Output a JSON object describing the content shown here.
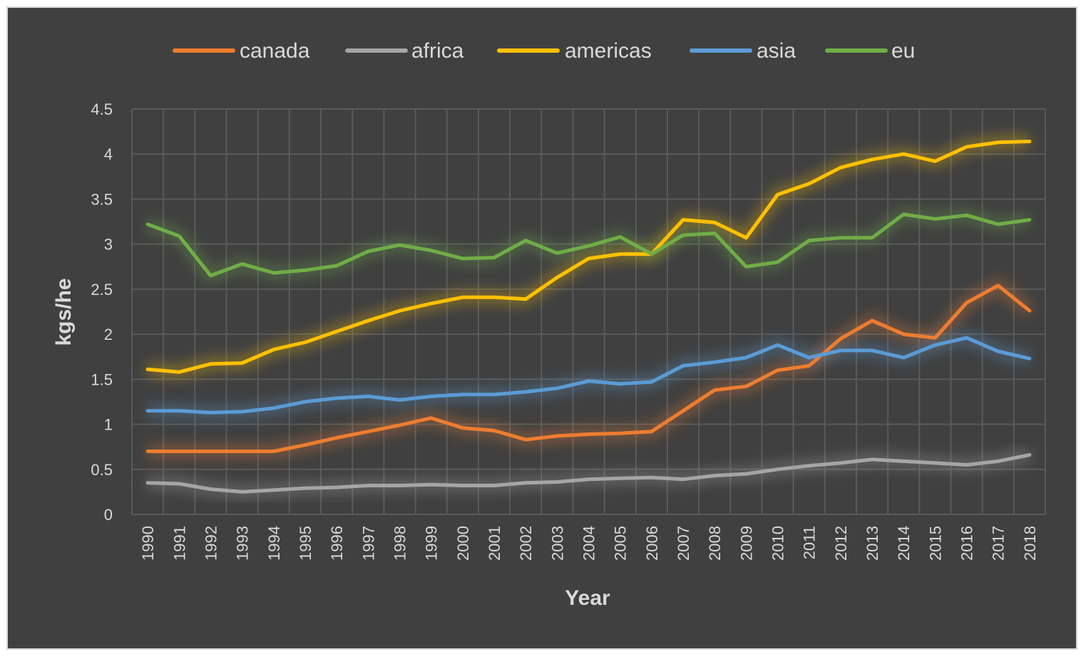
{
  "chart_data": {
    "type": "line",
    "title": "",
    "xlabel": "Year",
    "ylabel": "kgs/he",
    "ylim": [
      0,
      4.5
    ],
    "yticks": [
      "0",
      "0.5",
      "1",
      "1.5",
      "2",
      "2.5",
      "3",
      "3.5",
      "4",
      "4.5"
    ],
    "ytick_values": [
      0,
      0.5,
      1,
      1.5,
      2,
      2.5,
      3,
      3.5,
      4,
      4.5
    ],
    "grid": true,
    "legend_position": "top",
    "categories": [
      "1990",
      "1991",
      "1992",
      "1993",
      "1994",
      "1995",
      "1996",
      "1997",
      "1998",
      "1999",
      "2000",
      "2001",
      "2002",
      "2003",
      "2004",
      "2005",
      "2006",
      "2007",
      "2008",
      "2009",
      "2010",
      "2011",
      "2012",
      "2013",
      "2014",
      "2015",
      "2016",
      "2017",
      "2018"
    ],
    "series": [
      {
        "name": "canada",
        "color": "#ed7d31",
        "values": [
          0.7,
          0.7,
          0.7,
          0.7,
          0.7,
          0.77,
          0.85,
          0.92,
          0.99,
          1.07,
          0.96,
          0.93,
          0.83,
          0.87,
          0.89,
          0.9,
          0.92,
          1.15,
          1.38,
          1.42,
          1.6,
          1.65,
          1.95,
          2.15,
          2.0,
          1.96,
          2.35,
          2.54,
          2.26
        ]
      },
      {
        "name": "africa",
        "color": "#a5a5a5",
        "values": [
          0.35,
          0.34,
          0.28,
          0.25,
          0.27,
          0.29,
          0.3,
          0.32,
          0.32,
          0.33,
          0.32,
          0.32,
          0.35,
          0.36,
          0.39,
          0.4,
          0.41,
          0.39,
          0.43,
          0.45,
          0.5,
          0.54,
          0.57,
          0.61,
          0.59,
          0.57,
          0.55,
          0.59,
          0.66
        ]
      },
      {
        "name": "americas",
        "color": "#ffc000",
        "values": [
          1.61,
          1.58,
          1.67,
          1.68,
          1.83,
          1.91,
          2.03,
          2.15,
          2.26,
          2.34,
          2.41,
          2.41,
          2.39,
          2.63,
          2.84,
          2.89,
          2.89,
          3.27,
          3.24,
          3.07,
          3.55,
          3.67,
          3.85,
          3.94,
          4.0,
          3.92,
          4.08,
          4.13,
          4.14
        ]
      },
      {
        "name": "asia",
        "color": "#5b9bd5",
        "values": [
          1.15,
          1.15,
          1.13,
          1.14,
          1.18,
          1.25,
          1.29,
          1.31,
          1.27,
          1.31,
          1.33,
          1.33,
          1.36,
          1.4,
          1.48,
          1.45,
          1.47,
          1.65,
          1.69,
          1.74,
          1.88,
          1.74,
          1.82,
          1.82,
          1.74,
          1.88,
          1.96,
          1.81,
          1.73
        ]
      },
      {
        "name": "eu",
        "color": "#70ad47",
        "values": [
          3.22,
          3.09,
          2.65,
          2.78,
          2.68,
          2.71,
          2.76,
          2.92,
          2.99,
          2.93,
          2.84,
          2.85,
          3.04,
          2.9,
          2.98,
          3.08,
          2.89,
          3.1,
          3.12,
          2.75,
          2.8,
          3.04,
          3.07,
          3.07,
          3.33,
          3.28,
          3.32,
          3.22,
          3.27
        ]
      }
    ]
  }
}
